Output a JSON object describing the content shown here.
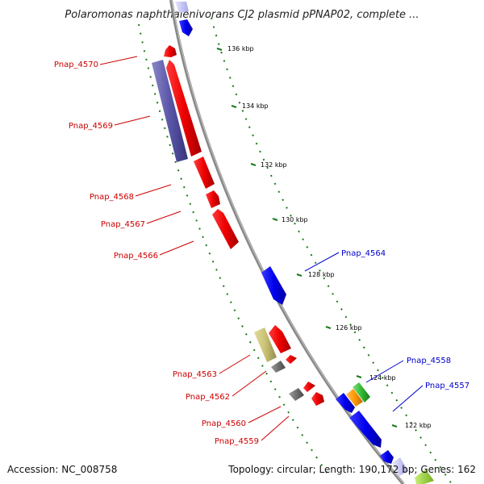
{
  "title": "Polaromonas naphthalenivorans CJ2 plasmid pPNAP02, complete ...",
  "footer": {
    "accession": "Accession: NC_008758",
    "summary": "Topology: circular; Length: 190,172 bp; Genes: 162"
  },
  "colors": {
    "backbone": "#888888",
    "tick": "#1a7a1a",
    "reverse_strand_label": "#cc0000",
    "forward_strand_label": "#0000cc"
  },
  "tick_labels": [
    "136 kbp",
    "134 kbp",
    "132 kbp",
    "130 kbp",
    "128 kbp",
    "126 kbp",
    "124 kbp",
    "122 kbp"
  ],
  "gene_labels": [
    {
      "text": "Pnap_4570",
      "color": "#cc0000"
    },
    {
      "text": "Pnap_4569",
      "color": "#cc0000"
    },
    {
      "text": "Pnap_4568",
      "color": "#cc0000"
    },
    {
      "text": "Pnap_4567",
      "color": "#cc0000"
    },
    {
      "text": "Pnap_4566",
      "color": "#cc0000"
    },
    {
      "text": "Pnap_4563",
      "color": "#cc0000"
    },
    {
      "text": "Pnap_4562",
      "color": "#cc0000"
    },
    {
      "text": "Pnap_4560",
      "color": "#cc0000"
    },
    {
      "text": "Pnap_4559",
      "color": "#cc0000"
    },
    {
      "text": "Pnap_4564",
      "color": "#0000cc"
    },
    {
      "text": "Pnap_4558",
      "color": "#0000cc"
    },
    {
      "text": "Pnap_4557",
      "color": "#0000cc"
    }
  ]
}
